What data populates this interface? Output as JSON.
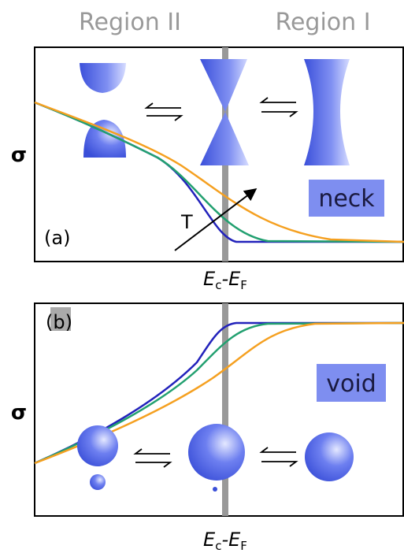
{
  "regions": [
    "Region II",
    "Region I"
  ],
  "panels": [
    {
      "label": "(a)",
      "ylabel": "σ",
      "tag": "neck",
      "arrow_label": "T",
      "xlabel": {
        "e": "E",
        "sub_c": "c",
        "minus_e": "-E",
        "sub_f": "F"
      }
    },
    {
      "label": "(b)",
      "ylabel": "σ",
      "tag": "void",
      "xlabel": {
        "e": "E",
        "sub_c": "c",
        "minus_e": "-E",
        "sub_f": "F"
      }
    }
  ]
}
